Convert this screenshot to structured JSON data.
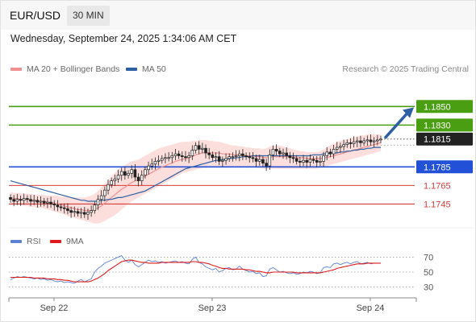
{
  "header": {
    "pair": "EUR/USD",
    "timeframe": "30 MIN",
    "datetime": "Wednesday, September 24, 2025 1:34:06 AM CET"
  },
  "legend": {
    "ma_bb": {
      "label": "MA 20 + Bollinger Bands",
      "color": "#f08f8f"
    },
    "ma50": {
      "label": "MA 50",
      "color": "#2d5fa3"
    },
    "credit": "Research © 2025 Trading Central"
  },
  "rsi_legend": {
    "rsi": {
      "label": "RSI",
      "color": "#5b82d6"
    },
    "ma9": {
      "label": "9MA",
      "color": "#e01919"
    }
  },
  "chart_data": [
    {
      "type": "candlestick",
      "ylim": [
        1.1722,
        1.1878
      ],
      "x_tick_labels": [
        "Sep 22",
        "Sep 23",
        "Sep 24"
      ],
      "resistance_levels": [
        {
          "value": 1.185,
          "label": "1.1850",
          "color": "#4a9e12"
        },
        {
          "value": 1.183,
          "label": "1.1830",
          "color": "#4a9e12"
        }
      ],
      "pivot_level": {
        "value": 1.1785,
        "label": "1.1785",
        "color": "#2250d6"
      },
      "support_levels": [
        {
          "value": 1.1765,
          "label": "1.1765",
          "color": "#d43c3c"
        },
        {
          "value": 1.1745,
          "label": "1.1745",
          "color": "#d43c3c"
        }
      ],
      "last_price": {
        "value": 1.1815,
        "label": "1.1815",
        "color": "#222222"
      },
      "forecast_arrow": {
        "from": 1.1815,
        "to": 1.1849,
        "color": "#2d5fa3"
      },
      "closes": [
        1.175,
        1.1748,
        1.175,
        1.1749,
        1.1751,
        1.175,
        1.1748,
        1.1749,
        1.1747,
        1.1748,
        1.1746,
        1.1747,
        1.1745,
        1.1744,
        1.1742,
        1.1741,
        1.174,
        1.1738,
        1.1736,
        1.1737,
        1.1735,
        1.1736,
        1.1734,
        1.1736,
        1.1738,
        1.1744,
        1.175,
        1.1754,
        1.176,
        1.1766,
        1.177,
        1.1772,
        1.1776,
        1.178,
        1.1776,
        1.1778,
        1.1782,
        1.1774,
        1.177,
        1.1776,
        1.1782,
        1.1786,
        1.1788,
        1.1791,
        1.1792,
        1.1794,
        1.1795,
        1.1795,
        1.1797,
        1.1799,
        1.1797,
        1.1796,
        1.1795,
        1.1797,
        1.1803,
        1.1808,
        1.1804,
        1.1805,
        1.18,
        1.1798,
        1.1795,
        1.1796,
        1.1791,
        1.1792,
        1.1794,
        1.1796,
        1.1796,
        1.1797,
        1.1799,
        1.1797,
        1.1796,
        1.1795,
        1.1794,
        1.1791,
        1.1793,
        1.1789,
        1.1786,
        1.1798,
        1.1804,
        1.1802,
        1.1799,
        1.18,
        1.1797,
        1.1795,
        1.1794,
        1.1791,
        1.179,
        1.1792,
        1.179,
        1.1793,
        1.1792,
        1.179,
        1.1791,
        1.1797,
        1.1801,
        1.1799,
        1.1804,
        1.1806,
        1.1807,
        1.1809,
        1.1811,
        1.181,
        1.1812,
        1.1813,
        1.1811,
        1.1813,
        1.1814,
        1.1812,
        1.1813,
        1.1814,
        1.1815
      ],
      "ma20": [
        1.1752,
        1.1751,
        1.1751,
        1.175,
        1.175,
        1.175,
        1.1749,
        1.1749,
        1.1749,
        1.1748,
        1.1748,
        1.1747,
        1.1747,
        1.1746,
        1.1745,
        1.1744,
        1.1743,
        1.1742,
        1.1741,
        1.174,
        1.1739,
        1.1739,
        1.1738,
        1.1738,
        1.1738,
        1.1739,
        1.1741,
        1.1743,
        1.1746,
        1.1749,
        1.1752,
        1.1755,
        1.1758,
        1.1761,
        1.1763,
        1.1766,
        1.1768,
        1.177,
        1.1771,
        1.1773,
        1.1775,
        1.1777,
        1.1779,
        1.1781,
        1.1783,
        1.1785,
        1.1786,
        1.1788,
        1.1789,
        1.1791,
        1.1792,
        1.1793,
        1.1794,
        1.1795,
        1.1796,
        1.1798,
        1.1799,
        1.18,
        1.18,
        1.18,
        1.18,
        1.18,
        1.18,
        1.1799,
        1.1799,
        1.1799,
        1.1798,
        1.1798,
        1.1798,
        1.1798,
        1.1797,
        1.1797,
        1.1797,
        1.1796,
        1.1796,
        1.1795,
        1.1795,
        1.1795,
        1.1796,
        1.1796,
        1.1796,
        1.1796,
        1.1796,
        1.1796,
        1.1796,
        1.1795,
        1.1795,
        1.1795,
        1.1794,
        1.1794,
        1.1794,
        1.1794,
        1.1794,
        1.1795,
        1.1795,
        1.1796,
        1.1797,
        1.1798,
        1.1799,
        1.18,
        1.1801,
        1.1802,
        1.1803,
        1.1804,
        1.1805,
        1.1806,
        1.1807,
        1.1808,
        1.1809,
        1.181,
        1.1811
      ],
      "bb_upper": [
        1.1758,
        1.1757,
        1.1757,
        1.1757,
        1.1756,
        1.1756,
        1.1756,
        1.1755,
        1.1755,
        1.1755,
        1.1755,
        1.1754,
        1.1754,
        1.1754,
        1.1754,
        1.1753,
        1.1753,
        1.1753,
        1.1752,
        1.1752,
        1.1752,
        1.1752,
        1.1752,
        1.1753,
        1.1754,
        1.1756,
        1.1759,
        1.1763,
        1.1767,
        1.1771,
        1.1775,
        1.1779,
        1.1782,
        1.1785,
        1.1787,
        1.1789,
        1.1791,
        1.1792,
        1.1793,
        1.1795,
        1.1797,
        1.1799,
        1.1801,
        1.1803,
        1.1805,
        1.1806,
        1.1807,
        1.1808,
        1.1809,
        1.181,
        1.1811,
        1.1812,
        1.1812,
        1.1812,
        1.1813,
        1.1813,
        1.1814,
        1.1814,
        1.1814,
        1.1813,
        1.1813,
        1.1812,
        1.1812,
        1.1811,
        1.181,
        1.1809,
        1.1808,
        1.1808,
        1.1807,
        1.1807,
        1.1806,
        1.1806,
        1.1805,
        1.1805,
        1.1805,
        1.1804,
        1.1805,
        1.1807,
        1.1808,
        1.1808,
        1.1808,
        1.1807,
        1.1806,
        1.1805,
        1.1804,
        1.1803,
        1.1802,
        1.1802,
        1.1801,
        1.1801,
        1.1801,
        1.1801,
        1.1802,
        1.1804,
        1.1806,
        1.1808,
        1.181,
        1.1812,
        1.1813,
        1.1814,
        1.1815,
        1.1816,
        1.1817,
        1.1818,
        1.1819,
        1.1819,
        1.182,
        1.182,
        1.182,
        1.182,
        1.182
      ],
      "bb_lower": [
        1.1746,
        1.1745,
        1.1745,
        1.1744,
        1.1743,
        1.1743,
        1.1742,
        1.1742,
        1.1741,
        1.1741,
        1.174,
        1.1739,
        1.1738,
        1.1737,
        1.1736,
        1.1735,
        1.1734,
        1.1732,
        1.1731,
        1.173,
        1.1729,
        1.1728,
        1.1727,
        1.1726,
        1.1725,
        1.1724,
        1.1724,
        1.1725,
        1.1727,
        1.1729,
        1.1731,
        1.1733,
        1.1736,
        1.1739,
        1.1742,
        1.1745,
        1.1748,
        1.175,
        1.1752,
        1.1754,
        1.1756,
        1.1758,
        1.176,
        1.1762,
        1.1764,
        1.1766,
        1.1768,
        1.177,
        1.1772,
        1.1774,
        1.1776,
        1.1778,
        1.1779,
        1.178,
        1.1781,
        1.1782,
        1.1783,
        1.1784,
        1.1784,
        1.1785,
        1.1785,
        1.1785,
        1.1785,
        1.1785,
        1.1785,
        1.1785,
        1.1785,
        1.1785,
        1.1785,
        1.1785,
        1.1785,
        1.1785,
        1.1785,
        1.1784,
        1.1784,
        1.1783,
        1.1783,
        1.1783,
        1.1783,
        1.1783,
        1.1783,
        1.1783,
        1.1783,
        1.1783,
        1.1783,
        1.1783,
        1.1783,
        1.1783,
        1.1783,
        1.1783,
        1.1783,
        1.1783,
        1.1784,
        1.1785,
        1.1786,
        1.1787,
        1.1788,
        1.1789,
        1.179,
        1.1791,
        1.1792,
        1.1793,
        1.1794,
        1.1795,
        1.1796,
        1.1797,
        1.1798,
        1.1799,
        1.18,
        1.1801,
        1.1802
      ],
      "ma50": [
        1.177,
        1.1769,
        1.1768,
        1.1767,
        1.1766,
        1.1765,
        1.1764,
        1.1763,
        1.1762,
        1.1761,
        1.176,
        1.1759,
        1.1758,
        1.1757,
        1.1756,
        1.1755,
        1.1754,
        1.1753,
        1.1752,
        1.1751,
        1.175,
        1.1749,
        1.1749,
        1.1748,
        1.1748,
        1.1748,
        1.1748,
        1.1749,
        1.1749,
        1.175,
        1.175,
        1.1751,
        1.1752,
        1.1752,
        1.1753,
        1.1754,
        1.1755,
        1.1756,
        1.1757,
        1.1758,
        1.1759,
        1.1761,
        1.1763,
        1.1765,
        1.1767,
        1.1769,
        1.1771,
        1.1773,
        1.1775,
        1.1777,
        1.1779,
        1.1781,
        1.1783,
        1.1784,
        1.1785,
        1.1786,
        1.1787,
        1.1788,
        1.1789,
        1.179,
        1.1791,
        1.1792,
        1.1792,
        1.1793,
        1.1793,
        1.1794,
        1.1794,
        1.1795,
        1.1795,
        1.1796,
        1.1796,
        1.1796,
        1.1797,
        1.1797,
        1.1797,
        1.1797,
        1.1797,
        1.1797,
        1.1797,
        1.1797,
        1.1797,
        1.1797,
        1.1797,
        1.1797,
        1.1797,
        1.1797,
        1.1797,
        1.1797,
        1.1797,
        1.1797,
        1.1798,
        1.1798,
        1.1798,
        1.1799,
        1.1799,
        1.18,
        1.18,
        1.18,
        1.1801,
        1.1801,
        1.1802,
        1.1802,
        1.1803,
        1.1803,
        1.1804,
        1.1804,
        1.1805,
        1.1805,
        1.1806,
        1.1806,
        1.1806
      ]
    },
    {
      "type": "line",
      "ylim": [
        22,
        78
      ],
      "y_tick_labels": [
        "70",
        "50",
        "30"
      ],
      "y_ticks": [
        70,
        50,
        30
      ],
      "rsi": [
        40,
        42,
        44,
        43,
        44,
        43,
        42,
        41,
        42,
        40,
        41,
        39,
        40,
        38,
        37,
        38,
        36,
        37,
        36,
        35,
        38,
        40,
        37,
        39,
        41,
        50,
        55,
        58,
        62,
        64,
        66,
        68,
        70,
        72,
        66,
        63,
        66,
        60,
        57,
        60,
        63,
        66,
        64,
        65,
        63,
        64,
        62,
        63,
        64,
        65,
        63,
        64,
        62,
        61,
        67,
        70,
        63,
        61,
        57,
        55,
        53,
        55,
        50,
        52,
        55,
        56,
        53,
        54,
        58,
        54,
        52,
        50,
        51,
        48,
        49,
        44,
        45,
        54,
        56,
        53,
        50,
        51,
        49,
        48,
        49,
        47,
        48,
        50,
        49,
        51,
        50,
        48,
        49,
        56,
        57,
        56,
        61,
        62,
        60,
        62,
        63,
        61,
        63,
        64,
        61,
        62,
        63,
        61,
        62,
        62,
        62
      ],
      "ma9": [
        43,
        43,
        43,
        43,
        43,
        43,
        43,
        42,
        42,
        42,
        42,
        41,
        41,
        41,
        40,
        40,
        39,
        39,
        38,
        37,
        37,
        37,
        37,
        37,
        38,
        40,
        42,
        45,
        48,
        52,
        55,
        58,
        61,
        64,
        65,
        66,
        66,
        65,
        64,
        63,
        63,
        62,
        62,
        62,
        62,
        63,
        63,
        63,
        63,
        63,
        63,
        63,
        63,
        63,
        64,
        64,
        63,
        63,
        62,
        61,
        59,
        58,
        56,
        55,
        55,
        54,
        54,
        54,
        54,
        54,
        53,
        53,
        52,
        51,
        51,
        50,
        49,
        49,
        50,
        50,
        50,
        50,
        50,
        50,
        50,
        49,
        49,
        49,
        49,
        49,
        49,
        49,
        49,
        50,
        51,
        52,
        53,
        55,
        56,
        57,
        58,
        59,
        60,
        61,
        61,
        61,
        62,
        62,
        62,
        62,
        62
      ]
    }
  ]
}
